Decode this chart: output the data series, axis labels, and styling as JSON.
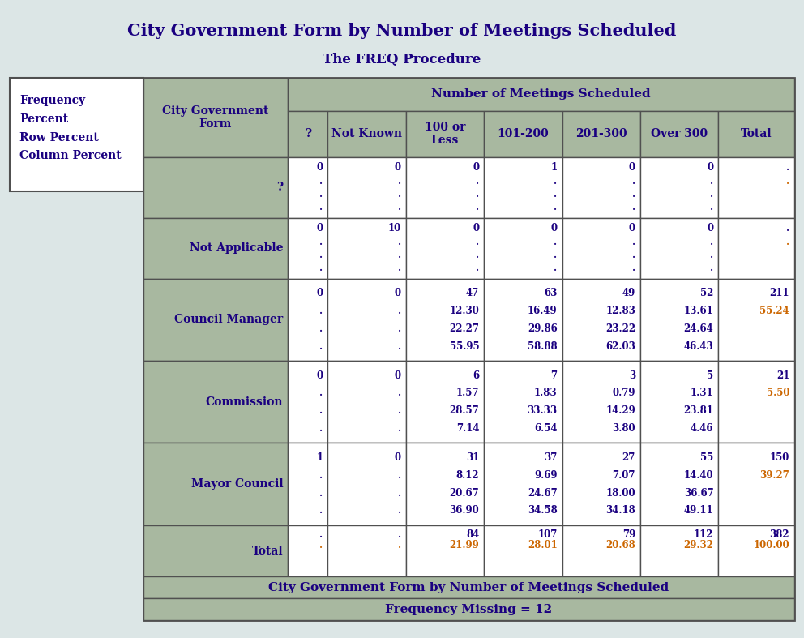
{
  "title": "City Government Form by Number of Meetings Scheduled",
  "subtitle": "The FREQ Procedure",
  "bg_color": "#dce6e6",
  "header_bg": "#a8b8a0",
  "cell_bg_white": "#ffffff",
  "text_dark": "#1a0080",
  "text_orange": "#cc6600",
  "legend_label": "Frequency\nPercent\nRow Percent\nColumn Percent",
  "col_headers": [
    "?",
    "Not Known",
    "100 or\nLess",
    "101-200",
    "201-300",
    "Over 300",
    "Total"
  ],
  "col_span_header": "Number of Meetings Scheduled",
  "footer1": "City Government Form by Number of Meetings Scheduled",
  "footer2": "Frequency Missing = 12",
  "row_header": "City Government\nForm",
  "cell_data": {
    "?": {
      "?": [
        "0",
        ".",
        ".",
        "."
      ],
      "Not Known": [
        "0",
        ".",
        ".",
        "."
      ],
      "100 or Less": [
        "0",
        ".",
        ".",
        "."
      ],
      "101-200": [
        "1",
        ".",
        ".",
        "."
      ],
      "201-300": [
        "0",
        ".",
        ".",
        "."
      ],
      "Over 300": [
        "0",
        ".",
        ".",
        "."
      ],
      "Total": [
        ".",
        ".",
        "",
        ""
      ]
    },
    "Not Applicable": {
      "?": [
        "0",
        ".",
        ".",
        "."
      ],
      "Not Known": [
        "10",
        ".",
        ".",
        "."
      ],
      "100 or Less": [
        "0",
        ".",
        ".",
        "."
      ],
      "101-200": [
        "0",
        ".",
        ".",
        "."
      ],
      "201-300": [
        "0",
        ".",
        ".",
        "."
      ],
      "Over 300": [
        "0",
        ".",
        ".",
        "."
      ],
      "Total": [
        ".",
        ".",
        "",
        ""
      ]
    },
    "Council Manager": {
      "?": [
        "0",
        ".",
        ".",
        "."
      ],
      "Not Known": [
        "0",
        ".",
        ".",
        "."
      ],
      "100 or Less": [
        "47",
        "12.30",
        "22.27",
        "55.95"
      ],
      "101-200": [
        "63",
        "16.49",
        "29.86",
        "58.88"
      ],
      "201-300": [
        "49",
        "12.83",
        "23.22",
        "62.03"
      ],
      "Over 300": [
        "52",
        "13.61",
        "24.64",
        "46.43"
      ],
      "Total": [
        "211",
        "55.24",
        "",
        ""
      ]
    },
    "Commission": {
      "?": [
        "0",
        ".",
        ".",
        "."
      ],
      "Not Known": [
        "0",
        ".",
        ".",
        "."
      ],
      "100 or Less": [
        "6",
        "1.57",
        "28.57",
        "7.14"
      ],
      "101-200": [
        "7",
        "1.83",
        "33.33",
        "6.54"
      ],
      "201-300": [
        "3",
        "0.79",
        "14.29",
        "3.80"
      ],
      "Over 300": [
        "5",
        "1.31",
        "23.81",
        "4.46"
      ],
      "Total": [
        "21",
        "5.50",
        "",
        ""
      ]
    },
    "Mayor Council": {
      "?": [
        "1",
        ".",
        ".",
        "."
      ],
      "Not Known": [
        "0",
        ".",
        ".",
        "."
      ],
      "100 or Less": [
        "31",
        "8.12",
        "20.67",
        "36.90"
      ],
      "101-200": [
        "37",
        "9.69",
        "24.67",
        "34.58"
      ],
      "201-300": [
        "27",
        "7.07",
        "18.00",
        "34.18"
      ],
      "Over 300": [
        "55",
        "14.40",
        "36.67",
        "49.11"
      ],
      "Total": [
        "150",
        "39.27",
        "",
        ""
      ]
    },
    "Total": {
      "?": [
        ".",
        ".",
        "",
        ""
      ],
      "Not Known": [
        ".",
        ".",
        "",
        ""
      ],
      "100 or Less": [
        "84",
        "21.99",
        "",
        ""
      ],
      "101-200": [
        "107",
        "28.01",
        "",
        ""
      ],
      "201-300": [
        "79",
        "20.68",
        "",
        ""
      ],
      "Over 300": [
        "112",
        "29.32",
        "",
        ""
      ],
      "Total": [
        "382",
        "100.00",
        "",
        ""
      ]
    }
  }
}
